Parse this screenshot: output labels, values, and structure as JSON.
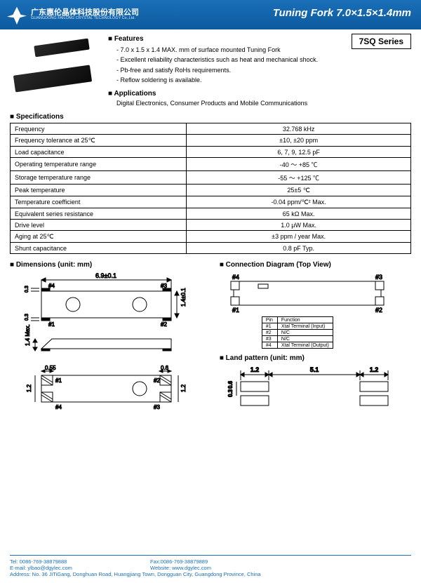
{
  "header": {
    "company_cn": "广东惠伦晶体科技股份有限公司",
    "company_en": "GUANGDONG FAILONG CRYSTAL TECHNOLOGY Co.,Ltd.",
    "title": "Tuning Fork 7.0×1.5×1.4mm"
  },
  "series": "7SQ Series",
  "features": {
    "head": "Features",
    "items": [
      "7.0 x 1.5 x 1.4 MAX. mm of surface mounted Tuning Fork",
      "Excellent reliability characteristics such as heat and mechanical shock.",
      "Pb-free and satisfy RoHs requirements.",
      "Reflow soldering is available."
    ]
  },
  "applications": {
    "head": "Applications",
    "text": "Digital Electronics, Consumer Products and Mobile Communications"
  },
  "specs": {
    "head": "Specifications",
    "rows": [
      [
        "Frequency",
        "32.768 kHz"
      ],
      [
        "Frequency tolerance at 25℃",
        "±10, ±20 ppm"
      ],
      [
        "Load capacitance",
        "6, 7, 9, 12.5 pF"
      ],
      [
        "Operating temperature range",
        "-40 ～ +85 ℃"
      ],
      [
        "Storage temperature range",
        "-55 ～ +125 ℃"
      ],
      [
        "Peak temperature",
        "25±5 ℃"
      ],
      [
        "Temperature coefficient",
        "-0.04 ppm/℃² Max."
      ],
      [
        "Equivalent series resistance",
        "65 kΩ Max."
      ],
      [
        "Drive level",
        "1.0 μW Max."
      ],
      [
        "Aging at 25℃",
        "±3 ppm / year Max."
      ],
      [
        "Shunt capacitance",
        "0.8 pF Typ."
      ]
    ]
  },
  "dimensions": {
    "head": "Dimensions (unit: mm)",
    "len": "6.9±0.1",
    "h": "1.4±0.1",
    "hmax": "1.4 Max.",
    "gap": "0.3",
    "p1": "#1",
    "p2": "#2",
    "p3": "#3",
    "p4": "#4",
    "d1": "0.55",
    "d2": "0.6",
    "d3": "1.2"
  },
  "connection": {
    "head": "Connection Diagram (Top View)",
    "pins_head": [
      "Pin",
      "Function"
    ],
    "pins": [
      [
        "#1",
        "Xtal Terminal (Input)"
      ],
      [
        "#2",
        "N/C"
      ],
      [
        "#3",
        "N/C"
      ],
      [
        "#4",
        "Xtal Terminal (Output)"
      ]
    ]
  },
  "land": {
    "head": "Land pattern (unit: mm)",
    "w1": "1.2",
    "w2": "5.1",
    "w3": "1.2",
    "h1": "0.6",
    "h2": "0.3"
  },
  "footer": {
    "tel": "Tel: 0086-769-38879888",
    "fax": "Fax:0086-769-38879889",
    "email": "E-mail: ylbao@dgylec.com",
    "web": "Website: www.dgylec.com",
    "addr": "Address: No. 36 JiTiGang, Donghuan Road, Huangjiang Town, Dongguan City, Guangdong Province, China"
  },
  "colors": {
    "header_bg": "#1a6fb8",
    "text": "#000000",
    "footer_text": "#1a6fb8"
  }
}
